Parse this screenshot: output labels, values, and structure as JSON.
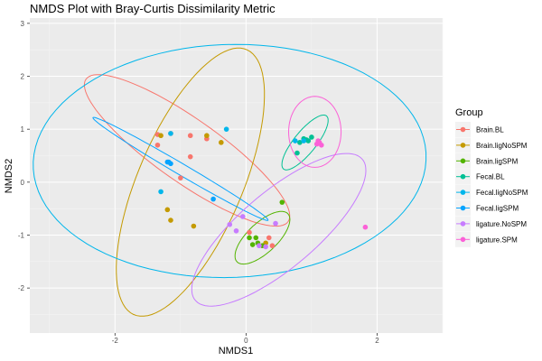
{
  "chart_data": {
    "type": "scatter",
    "title": "NMDS Plot with Bray-Curtis Dissimilarity Metric",
    "xlabel": "NMDS1",
    "ylabel": "NMDS2",
    "xlim": [
      -3.3,
      3.0
    ],
    "ylim": [
      -2.85,
      3.1
    ],
    "x_ticks": [
      -2,
      0,
      2
    ],
    "y_ticks": [
      -2,
      -1,
      0,
      1,
      2,
      3
    ],
    "grid": true,
    "legend": {
      "title": "Group",
      "position": "right"
    },
    "series": [
      {
        "name": "Brain.BL",
        "color": "#F8766D",
        "points": [
          [
            -1.35,
            0.9
          ],
          [
            -1.35,
            0.7
          ],
          [
            -1.15,
            0.92
          ],
          [
            -0.85,
            0.88
          ],
          [
            -0.6,
            0.82
          ],
          [
            -0.85,
            0.48
          ],
          [
            -1.0,
            0.08
          ],
          [
            0.05,
            -0.95
          ],
          [
            0.35,
            -1.05
          ],
          [
            0.4,
            -1.2
          ]
        ],
        "ellipse": {
          "cx": -0.9,
          "cy": 0.6,
          "rx": 2.05,
          "ry": 0.55,
          "angle_deg": -42
        }
      },
      {
        "name": "Brain.ligNoSPM",
        "color": "#C49A00",
        "points": [
          [
            -1.3,
            0.88
          ],
          [
            -0.6,
            0.88
          ],
          [
            -0.38,
            0.75
          ],
          [
            -1.2,
            -0.52
          ],
          [
            -1.15,
            -0.72
          ],
          [
            -0.8,
            -0.83
          ],
          [
            0.3,
            -1.15
          ]
        ],
        "ellipse": {
          "cx": -0.85,
          "cy": 0.0,
          "rx": 2.65,
          "ry": 0.82,
          "angle_deg": 72
        }
      },
      {
        "name": "Brain.ligSPM",
        "color": "#53B400",
        "points": [
          [
            0.05,
            -1.05
          ],
          [
            0.15,
            -1.05
          ],
          [
            0.1,
            -1.18
          ],
          [
            0.18,
            -1.15
          ],
          [
            0.25,
            -1.2
          ],
          [
            0.55,
            -0.38
          ]
        ],
        "ellipse": {
          "cx": 0.25,
          "cy": -1.05,
          "rx": 0.6,
          "ry": 0.25,
          "angle_deg": 52
        }
      },
      {
        "name": "Fecal.BL",
        "color": "#00C094",
        "points": [
          [
            0.82,
            0.75
          ],
          [
            0.88,
            0.82
          ],
          [
            0.95,
            0.78
          ],
          [
            1.0,
            0.85
          ],
          [
            0.92,
            0.8
          ],
          [
            0.78,
            0.55
          ]
        ],
        "ellipse": {
          "cx": 0.9,
          "cy": 0.75,
          "rx": 0.6,
          "ry": 0.18,
          "angle_deg": 58
        }
      },
      {
        "name": "Fecal.ligNoSPM",
        "color": "#00B6EB",
        "points": [
          [
            -1.15,
            0.92
          ],
          [
            -0.3,
            1.0
          ],
          [
            -1.3,
            -0.18
          ],
          [
            0.75,
            0.78
          ],
          [
            0.88,
            0.78
          ]
        ],
        "ellipse": {
          "cx": -0.25,
          "cy": 0.4,
          "rx": 3.0,
          "ry": 2.2,
          "angle_deg": 3
        }
      },
      {
        "name": "Fecal.ligSPM",
        "color": "#06A4FF",
        "points": [
          [
            -1.2,
            0.38
          ],
          [
            -1.15,
            0.35
          ],
          [
            -0.5,
            -0.32
          ],
          [
            -1.18,
            0.38
          ]
        ],
        "ellipse": {
          "cx": -1.0,
          "cy": 0.25,
          "rx": 1.65,
          "ry": 0.1,
          "angle_deg": -36
        }
      },
      {
        "name": "ligature.NoSPM",
        "color": "#C77CFF",
        "points": [
          [
            -0.25,
            -0.8
          ],
          [
            -0.15,
            -0.92
          ],
          [
            0.45,
            -0.78
          ],
          [
            0.2,
            -1.2
          ],
          [
            0.3,
            -1.22
          ],
          [
            -0.05,
            -0.65
          ]
        ],
        "ellipse": {
          "cx": 0.5,
          "cy": -0.9,
          "rx": 1.85,
          "ry": 0.65,
          "angle_deg": 48
        }
      },
      {
        "name": "ligature.SPM",
        "color": "#FB61D7",
        "points": [
          [
            1.1,
            0.78
          ],
          [
            1.08,
            0.72
          ],
          [
            1.15,
            0.7
          ],
          [
            1.12,
            0.75
          ],
          [
            1.82,
            -0.85
          ]
        ],
        "ellipse": {
          "cx": 1.05,
          "cy": 0.95,
          "rx": 0.67,
          "ry": 0.4,
          "angle_deg": 90
        }
      }
    ]
  }
}
